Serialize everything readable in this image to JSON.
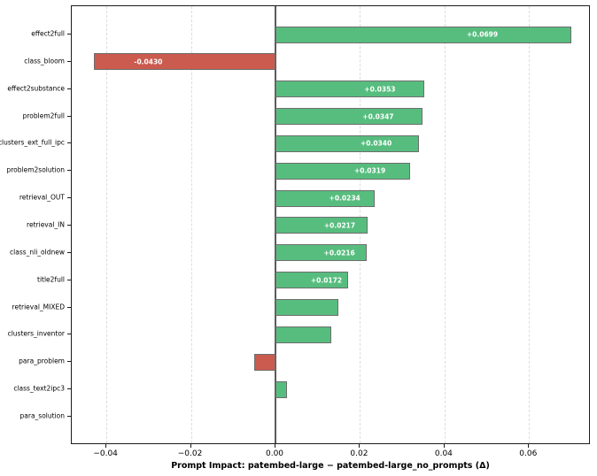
{
  "chart_data": {
    "type": "bar",
    "orientation": "horizontal",
    "title": "",
    "xlabel": "Prompt Impact: patembed-large − patembed-large_no_prompts (Δ)",
    "ylabel": "",
    "categories": [
      "effect2full",
      "class_bloom",
      "effect2substance",
      "problem2full",
      "clusters_ext_full_ipc",
      "problem2solution",
      "retrieval_OUT",
      "retrieval_IN",
      "class_nli_oldnew",
      "title2full",
      "retrieval_MIXED",
      "clusters_inventor",
      "para_problem",
      "class_text2ipc3",
      "para_solution"
    ],
    "values": [
      0.0699,
      -0.043,
      0.0353,
      0.0347,
      0.034,
      0.0319,
      0.0234,
      0.0217,
      0.0216,
      0.0172,
      0.0149,
      0.0131,
      -0.005,
      0.0028,
      0.0
    ],
    "bar_labels": [
      "+0.0699",
      "-0.0430",
      "+0.0353",
      "+0.0347",
      "+0.0340",
      "+0.0319",
      "+0.0234",
      "+0.0217",
      "+0.0216",
      "+0.0172",
      null,
      null,
      null,
      null,
      null
    ],
    "x_tick_values": [
      -0.04,
      -0.02,
      0,
      0.02,
      0.04,
      0.06
    ],
    "x_tick_labels": [
      "−0.04",
      "−0.02",
      "0.00",
      "0.02",
      "0.04",
      "0.06"
    ],
    "xlim": [
      -0.0482,
      0.0746
    ],
    "grid": true,
    "legend_position": "none",
    "colors": {
      "positive_bar": "#57bd7e",
      "negative_bar": "#cb5a4f",
      "bar_edge": "#6e6e6e",
      "zero_line": "#5a5a5a",
      "gridline": "#dcdcdc",
      "spine": "#1c1c1c",
      "bar_label_text": "#ffffff",
      "text": "#000000",
      "background": "#ffffff"
    }
  }
}
